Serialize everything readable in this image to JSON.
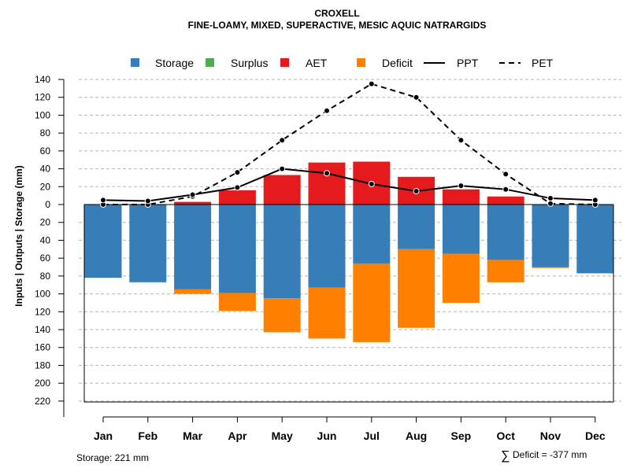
{
  "chart_data": {
    "type": "bar",
    "title": "CROXELL",
    "subtitle": "FINE-LOAMY, MIXED, SUPERACTIVE, MESIC AQUIC NATRARGIDS",
    "ylabel": "Inputs | Outputs | Storage    (mm)",
    "categories": [
      "Jan",
      "Feb",
      "Mar",
      "Apr",
      "May",
      "Jun",
      "Jul",
      "Aug",
      "Sep",
      "Oct",
      "Nov",
      "Dec"
    ],
    "ylim": [
      -220,
      140
    ],
    "ytick_values": [
      140,
      120,
      100,
      80,
      60,
      40,
      20,
      0,
      -20,
      -40,
      -60,
      -80,
      -100,
      -120,
      -140,
      -160,
      -180,
      -200,
      -220
    ],
    "ytick_labels": [
      "140",
      "120",
      "100",
      "80",
      "60",
      "40",
      "20",
      "0",
      "20",
      "40",
      "60",
      "80",
      "100",
      "120",
      "140",
      "160",
      "180",
      "200",
      "220"
    ],
    "grid": true,
    "legend": [
      {
        "key": "storage",
        "label": "Storage",
        "kind": "box",
        "color": "#377EB8"
      },
      {
        "key": "surplus",
        "label": "Surplus",
        "kind": "box",
        "color": "#4DAF4A"
      },
      {
        "key": "aet",
        "label": "AET",
        "kind": "box",
        "color": "#E41A1C"
      },
      {
        "key": "deficit",
        "label": "Deficit",
        "kind": "box",
        "color": "#FF7F00"
      },
      {
        "key": "ppt",
        "label": "PPT",
        "kind": "solid-line",
        "color": "#000000"
      },
      {
        "key": "pet",
        "label": "PET",
        "kind": "dashed-line",
        "color": "#000000"
      }
    ],
    "series": [
      {
        "name": "AET",
        "color": "#E41A1C",
        "values": [
          0,
          0,
          3,
          16,
          33,
          47,
          48,
          31,
          17,
          9,
          0,
          0
        ]
      },
      {
        "name": "Storage",
        "color": "#377EB8",
        "values": [
          82,
          87,
          95,
          99,
          105,
          93,
          66,
          50,
          55,
          62,
          70,
          77
        ]
      },
      {
        "name": "Deficit",
        "color": "#FF7F00",
        "values": [
          0,
          0,
          5,
          20,
          38,
          57,
          88,
          88,
          55,
          25,
          1,
          0
        ]
      },
      {
        "name": "Surplus",
        "color": "#4DAF4A",
        "values": [
          0,
          0,
          0,
          0,
          0,
          0,
          0,
          0,
          0,
          0,
          0,
          0
        ]
      },
      {
        "name": "PPT",
        "color": "#000000",
        "values": [
          5,
          4,
          11,
          19,
          40,
          35,
          23,
          15,
          21,
          17,
          7,
          5
        ]
      },
      {
        "name": "PET",
        "color": "#000000",
        "values": [
          0,
          0,
          9,
          36,
          72,
          105,
          135,
          120,
          72,
          34,
          1,
          0
        ]
      }
    ],
    "storage_capacity": 221
  },
  "footer": {
    "storage_note": "Storage: 221 mm",
    "deficit_symbol": "∑",
    "deficit_note": "Deficit = -377 mm"
  }
}
